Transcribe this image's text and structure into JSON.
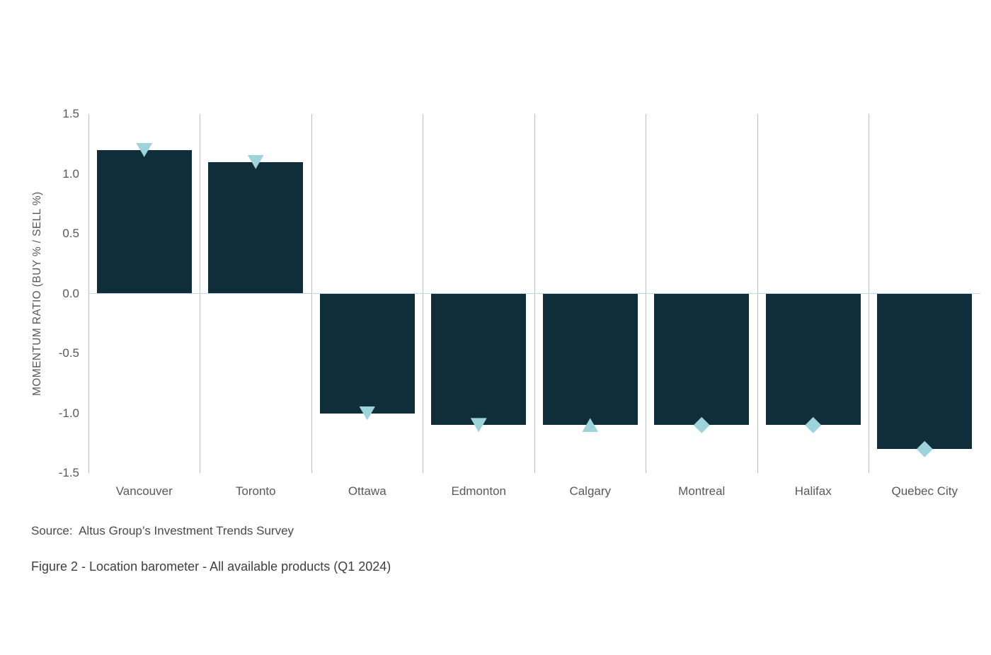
{
  "chart_data": {
    "type": "bar",
    "categories": [
      "Vancouver",
      "Toronto",
      "Ottawa",
      "Edmonton",
      "Calgary",
      "Montreal",
      "Halifax",
      "Quebec City"
    ],
    "values": [
      1.2,
      1.1,
      -1.0,
      -1.1,
      -1.1,
      -1.1,
      -1.1,
      -1.3
    ],
    "markers": [
      "triangle-down",
      "triangle-down",
      "triangle-down",
      "triangle-down",
      "triangle-up",
      "diamond",
      "diamond",
      "diamond"
    ],
    "title": "",
    "xlabel": "",
    "ylabel": "MOMENTUM RATIO (BUY % / SELL %)",
    "ylim": [
      -1.5,
      1.5
    ],
    "ytick_labels": [
      "1.5",
      "1.0",
      "0.5",
      "0.0",
      "-0.5",
      "-1.0",
      "-1.5"
    ],
    "legend": "none",
    "grid": "vertical category separators, light-blue zero line",
    "colors": {
      "bar": "#102E3A",
      "marker": "#9DD3DB",
      "gridline": "#BDBDBD",
      "zero_line": "#BDD7EE",
      "axis_text": "#595959"
    }
  },
  "source_text": "Source:  Altus Group’s Investment Trends Survey",
  "caption": "Figure 2 - Location barometer - All available products (Q1 2024)"
}
